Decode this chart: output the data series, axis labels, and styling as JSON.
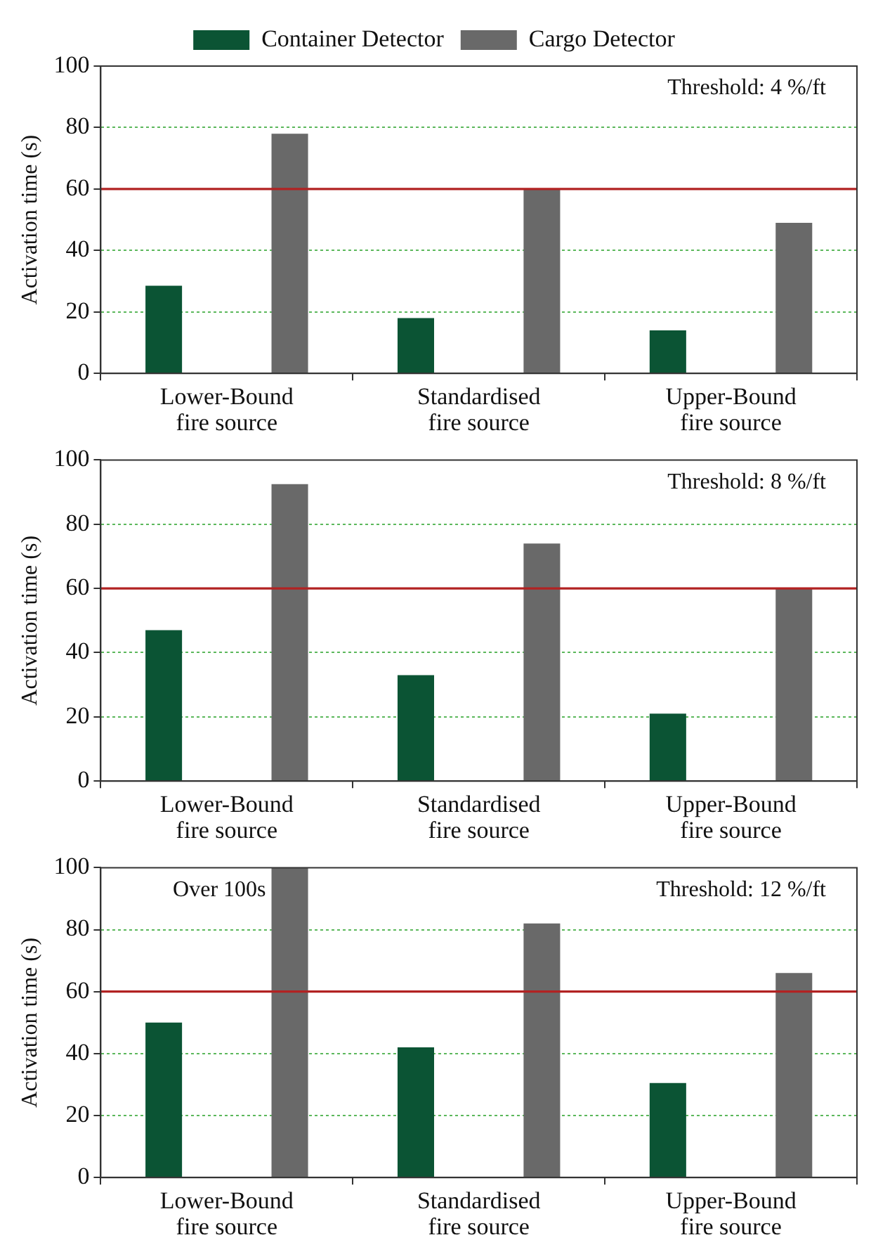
{
  "chart_data": [
    {
      "type": "bar",
      "ylabel": "Activation time (s)",
      "categories": [
        "Lower-Bound\nfire source",
        "Standardised\nfire source",
        "Upper-Bound\nfire source"
      ],
      "series": [
        {
          "name": "Container Detector",
          "color": "#0b5434",
          "values": [
            28.5,
            18,
            14
          ]
        },
        {
          "name": "Cargo Detector",
          "color": "#696969",
          "values": [
            78,
            60,
            49
          ]
        }
      ],
      "ylim": [
        0,
        100
      ],
      "yticks": [
        0,
        20,
        40,
        60,
        80,
        100
      ],
      "grid": "y",
      "legend": "top",
      "ref_lines": [
        {
          "axis": "y",
          "value": 60,
          "color": "#b22222"
        }
      ],
      "annotations": [
        "Threshold: 4 %/ft"
      ]
    },
    {
      "type": "bar",
      "ylabel": "Activation time (s)",
      "categories": [
        "Lower-Bound\nfire source",
        "Standardised\nfire source",
        "Upper-Bound\nfire source"
      ],
      "series": [
        {
          "color": "#0b5434",
          "values": [
            47,
            33,
            21
          ]
        },
        {
          "color": "#696969",
          "values": [
            92.5,
            74,
            60
          ]
        }
      ],
      "ylim": [
        0,
        100
      ],
      "yticks": [
        0,
        20,
        40,
        60,
        80,
        100
      ],
      "grid": "y",
      "ref_lines": [
        {
          "axis": "y",
          "value": 60,
          "color": "#b22222"
        }
      ],
      "annotations": [
        "Threshold: 8 %/ft"
      ]
    },
    {
      "type": "bar",
      "ylabel": "Activation time (s)",
      "categories": [
        "Lower-Bound\nfire source",
        "Standardised\nfire source",
        "Upper-Bound\nfire source"
      ],
      "series": [
        {
          "color": "#0b5434",
          "values": [
            50,
            42,
            30.5
          ]
        },
        {
          "color": "#696969",
          "values": [
            100,
            82,
            66
          ]
        }
      ],
      "ylim": [
        0,
        100
      ],
      "yticks": [
        0,
        20,
        40,
        60,
        80,
        100
      ],
      "grid": "y",
      "ref_lines": [
        {
          "axis": "y",
          "value": 60,
          "color": "#b22222"
        }
      ],
      "annotations": [
        "Threshold: 12 %/ft",
        "Over 100s"
      ]
    }
  ]
}
